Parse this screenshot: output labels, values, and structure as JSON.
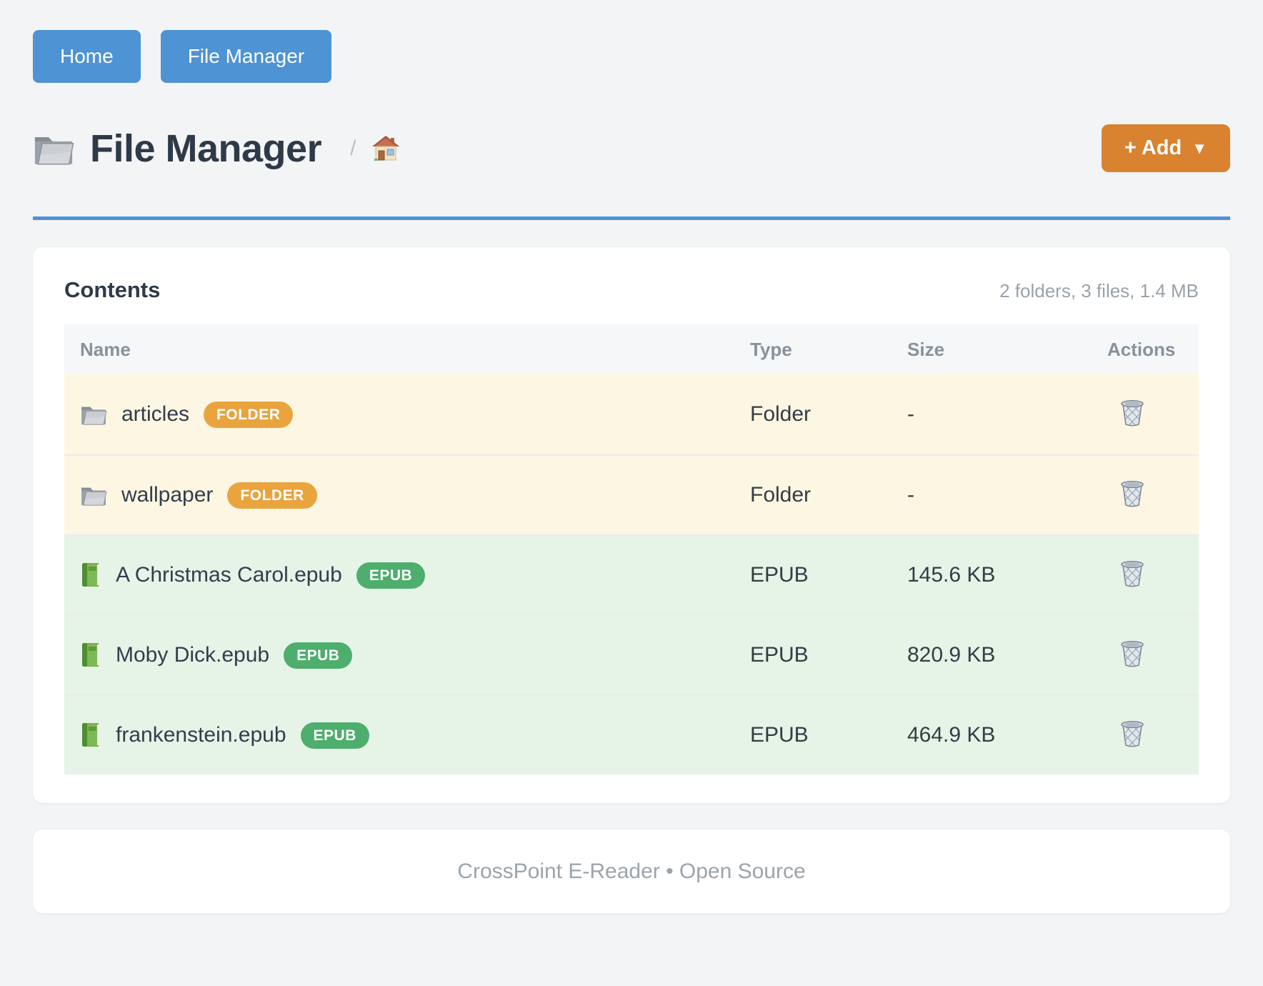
{
  "nav": {
    "items": [
      {
        "label": "Home"
      },
      {
        "label": "File Manager"
      }
    ]
  },
  "header": {
    "title": "File Manager",
    "separator": "/",
    "add_label": "+ Add",
    "add_caret": "▼"
  },
  "contents": {
    "heading": "Contents",
    "summary": "2 folders, 3 files, 1.4 MB",
    "columns": [
      "Name",
      "Type",
      "Size",
      "Actions"
    ],
    "rows": [
      {
        "name": "articles",
        "badge": "FOLDER",
        "kind": "folder",
        "type": "Folder",
        "size": "-"
      },
      {
        "name": "wallpaper",
        "badge": "FOLDER",
        "kind": "folder",
        "type": "Folder",
        "size": "-"
      },
      {
        "name": "A Christmas Carol.epub",
        "badge": "EPUB",
        "kind": "epub",
        "type": "EPUB",
        "size": "145.6 KB"
      },
      {
        "name": "Moby Dick.epub",
        "badge": "EPUB",
        "kind": "epub",
        "type": "EPUB",
        "size": "820.9 KB"
      },
      {
        "name": "frankenstein.epub",
        "badge": "EPUB",
        "kind": "epub",
        "type": "EPUB",
        "size": "464.9 KB"
      }
    ]
  },
  "footer": {
    "text": "CrossPoint E-Reader • Open Source"
  },
  "colors": {
    "accent_blue": "#4e93d3",
    "add_orange": "#d9822f",
    "badge_orange": "#e9a43e",
    "badge_green": "#4eae6d",
    "folder_row_bg": "#fdf6e3",
    "epub_row_bg": "#e6f4e8"
  }
}
